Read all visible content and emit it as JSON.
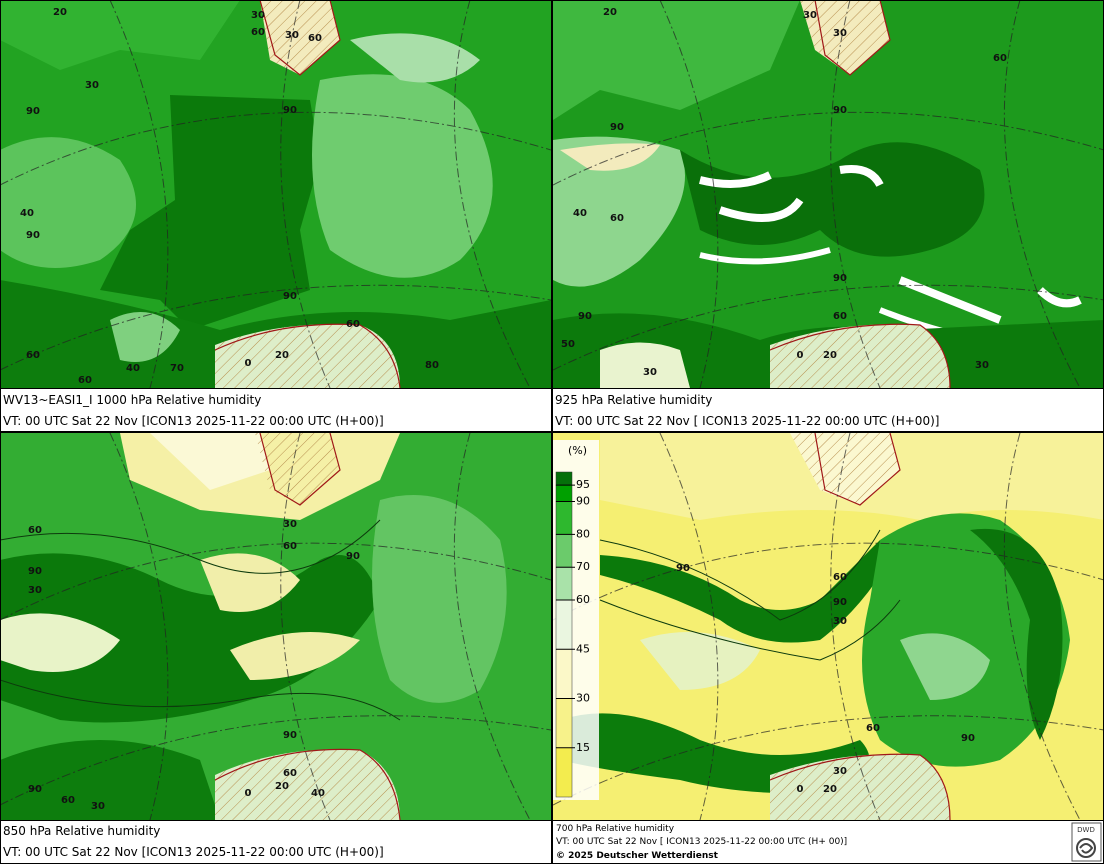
{
  "panels": [
    {
      "title": "WV13~EASI1_I 1000 hPa Relative humidity",
      "valid": "VT: 00 UTC Sat  22 Nov [ICON13 2025-11-22 00:00 UTC  (H+00)]",
      "contour_labels": [
        "20",
        "30",
        "60",
        "30",
        "60",
        "30",
        "90",
        "90",
        "40",
        "90",
        "90",
        "60",
        "60",
        "40",
        "70",
        "80",
        "60",
        "0",
        "20"
      ]
    },
    {
      "title": "925 hPa Relative humidity",
      "valid": "VT: 00 UTC Sat  22 Nov [ ICON13 2025-11-22 00:00 UTC  (H+00)]",
      "contour_labels": [
        "20",
        "30",
        "30",
        "60",
        "90",
        "90",
        "40",
        "60",
        "90",
        "90",
        "60",
        "50",
        "30",
        "0",
        "20",
        "30"
      ]
    },
    {
      "title": "850 hPa  Relative humidity",
      "valid": "VT: 00 UTC Sat  22 Nov [ICON13 2025-11-22 00:00 UTC  (H+00)]",
      "contour_labels": [
        "60",
        "30",
        "60",
        "90",
        "90",
        "30",
        "90",
        "60",
        "90",
        "60",
        "30",
        "0",
        "20",
        "40"
      ]
    },
    {
      "title": "700 hPa Relative humidity",
      "valid": "VT: 00 UTC Sat  22 Nov [ ICON13 2025-11-22 00:00 UTC  (H+ 00)]",
      "contour_labels": [
        "90",
        "60",
        "90",
        "30",
        "60",
        "90",
        "30",
        "0",
        "20"
      ]
    }
  ],
  "legend": {
    "unit": "(%)",
    "levels": [
      95,
      90,
      80,
      70,
      60,
      45,
      30,
      15
    ]
  },
  "copyright": "© 2025 Deutscher Wetterdienst",
  "logo": "DWD"
}
